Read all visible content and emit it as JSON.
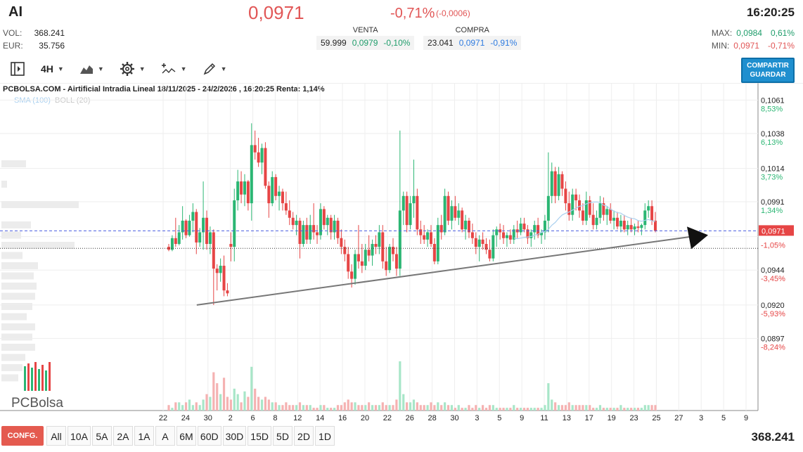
{
  "header": {
    "ticker": "AI",
    "price": "0,0971",
    "change_pct": "-0,71%",
    "change_abs": "(-0,0006)",
    "time": "16:20:25",
    "vol_label": "VOL:",
    "vol_value": "368.241",
    "eur_label": "EUR:",
    "eur_value": "35.756",
    "max_label": "MAX:",
    "max_value": "0,0984",
    "max_pct": "0,61%",
    "min_label": "MIN:",
    "min_value": "0,0971",
    "min_pct": "-0,71%"
  },
  "quotes": {
    "venta_label": "VENTA",
    "venta_qty": "59.999",
    "venta_price": "0,0979",
    "venta_pct": "-0,10%",
    "compra_label": "COMPRA",
    "compra_qty": "23.041",
    "compra_price": "0,0971",
    "compra_pct": "-0,91%"
  },
  "toolbar": {
    "interval": "4H",
    "share_line1": "COMPARTIR",
    "share_line2": "GUARDAR"
  },
  "chart_title": "PCBOLSA.COM - Airtificial Intradia Lineal 18/11/2025 - 24/2/2026 , 16:20:25 Renta: 1,14%",
  "indicators": {
    "sma": "SMA (100)",
    "boll": "BOLL (20)"
  },
  "logo_text": "PCBolsa",
  "bottom": {
    "config_label": "CONFG.",
    "periods": [
      "All",
      "10A",
      "5A",
      "2A",
      "1A",
      "A",
      "6M",
      "60D",
      "30D",
      "15D",
      "5D",
      "2D",
      "1D"
    ],
    "volume": "368.241"
  },
  "colors": {
    "up": "#2bb673",
    "down": "#e64545",
    "accent": "#1f8fcf",
    "config": "#e45a4f"
  },
  "chart_data": {
    "type": "candlestick",
    "title": "PCBOLSA.COM - Airtificial Intradia Lineal 18/11/2025 - 24/2/2026 , 16:20:25 Renta: 1,14%",
    "ylim": [
      0.0888,
      0.1066
    ],
    "current_price": 0.0971,
    "current_price_label": "0,0971",
    "reference_price": 0.0959,
    "y_ticks": [
      {
        "value": 0.1061,
        "label": "0,1061",
        "pct": "8,53%"
      },
      {
        "value": 0.1038,
        "label": "0,1038",
        "pct": "6,13%"
      },
      {
        "value": 0.1014,
        "label": "0,1014",
        "pct": "3,73%"
      },
      {
        "value": 0.0991,
        "label": "0,0991",
        "pct": "1,34%"
      },
      {
        "value": 0.0967,
        "label": "",
        "pct": "-1,05%"
      },
      {
        "value": 0.0944,
        "label": "0,0944",
        "pct": "-3,45%"
      },
      {
        "value": 0.092,
        "label": "0,0920",
        "pct": "-5,93%"
      },
      {
        "value": 0.0897,
        "label": "0,0897",
        "pct": "-8,24%"
      }
    ],
    "x_ticks": [
      "22",
      "24",
      "30",
      "2",
      "6",
      "8",
      "12",
      "14",
      "16",
      "20",
      "22",
      "26",
      "28",
      "30",
      "3",
      "5",
      "9",
      "11",
      "13",
      "17",
      "19",
      "23",
      "25",
      "27",
      "3",
      "5",
      "9"
    ],
    "trendline": {
      "start_index": 2,
      "start_value": 0.092,
      "end_index": 143,
      "end_value": 0.0971
    },
    "candles": [
      {
        "o": 0.096,
        "h": 0.0962,
        "l": 0.0957,
        "c": 0.0958,
        "v": 2
      },
      {
        "o": 0.0958,
        "h": 0.0968,
        "l": 0.0957,
        "c": 0.0966,
        "v": 1
      },
      {
        "o": 0.0966,
        "h": 0.098,
        "l": 0.096,
        "c": 0.0962,
        "v": 3
      },
      {
        "o": 0.0962,
        "h": 0.0975,
        "l": 0.0961,
        "c": 0.097,
        "v": 3
      },
      {
        "o": 0.097,
        "h": 0.0988,
        "l": 0.0965,
        "c": 0.0978,
        "v": 2
      },
      {
        "o": 0.0978,
        "h": 0.0979,
        "l": 0.0966,
        "c": 0.0968,
        "v": 3
      },
      {
        "o": 0.0968,
        "h": 0.0982,
        "l": 0.0967,
        "c": 0.0978,
        "v": 4
      },
      {
        "o": 0.0978,
        "h": 0.099,
        "l": 0.097,
        "c": 0.0984,
        "v": 2
      },
      {
        "o": 0.0984,
        "h": 0.0986,
        "l": 0.0955,
        "c": 0.0963,
        "v": 3
      },
      {
        "o": 0.0963,
        "h": 0.0973,
        "l": 0.096,
        "c": 0.097,
        "v": 2
      },
      {
        "o": 0.097,
        "h": 0.1005,
        "l": 0.0958,
        "c": 0.098,
        "v": 4
      },
      {
        "o": 0.098,
        "h": 0.0985,
        "l": 0.0958,
        "c": 0.0962,
        "v": 6
      },
      {
        "o": 0.0962,
        "h": 0.0974,
        "l": 0.0955,
        "c": 0.097,
        "v": 5
      },
      {
        "o": 0.097,
        "h": 0.0972,
        "l": 0.092,
        "c": 0.0945,
        "v": 14
      },
      {
        "o": 0.0945,
        "h": 0.0948,
        "l": 0.093,
        "c": 0.0942,
        "v": 10
      },
      {
        "o": 0.0942,
        "h": 0.0952,
        "l": 0.0936,
        "c": 0.0947,
        "v": 6
      },
      {
        "o": 0.0947,
        "h": 0.0954,
        "l": 0.0926,
        "c": 0.093,
        "v": 12
      },
      {
        "o": 0.093,
        "h": 0.0935,
        "l": 0.0926,
        "c": 0.0928,
        "v": 5
      },
      {
        "o": 0.0962,
        "h": 0.097,
        "l": 0.095,
        "c": 0.096,
        "v": 4
      },
      {
        "o": 0.096,
        "h": 0.1,
        "l": 0.095,
        "c": 0.0992,
        "v": 8
      },
      {
        "o": 0.0992,
        "h": 0.1013,
        "l": 0.0985,
        "c": 0.1005,
        "v": 6
      },
      {
        "o": 0.1005,
        "h": 0.1012,
        "l": 0.099,
        "c": 0.0996,
        "v": 3
      },
      {
        "o": 0.0996,
        "h": 0.101,
        "l": 0.0988,
        "c": 0.1005,
        "v": 7
      },
      {
        "o": 0.1005,
        "h": 0.1006,
        "l": 0.0985,
        "c": 0.099,
        "v": 5
      },
      {
        "o": 0.099,
        "h": 0.1045,
        "l": 0.0978,
        "c": 0.103,
        "v": 16
      },
      {
        "o": 0.103,
        "h": 0.104,
        "l": 0.102,
        "c": 0.1025,
        "v": 8
      },
      {
        "o": 0.1025,
        "h": 0.1035,
        "l": 0.1015,
        "c": 0.1018,
        "v": 5
      },
      {
        "o": 0.1018,
        "h": 0.1031,
        "l": 0.101,
        "c": 0.1028,
        "v": 4
      },
      {
        "o": 0.1028,
        "h": 0.1032,
        "l": 0.1,
        "c": 0.1002,
        "v": 5
      },
      {
        "o": 0.1002,
        "h": 0.1005,
        "l": 0.098,
        "c": 0.099,
        "v": 4
      },
      {
        "o": 0.099,
        "h": 0.1012,
        "l": 0.0988,
        "c": 0.1008,
        "v": 3
      },
      {
        "o": 0.1008,
        "h": 0.101,
        "l": 0.0992,
        "c": 0.0995,
        "v": 3
      },
      {
        "o": 0.0995,
        "h": 0.1002,
        "l": 0.0985,
        "c": 0.0998,
        "v": 2
      },
      {
        "o": 0.0998,
        "h": 0.1,
        "l": 0.0985,
        "c": 0.099,
        "v": 2
      },
      {
        "o": 0.099,
        "h": 0.0998,
        "l": 0.0982,
        "c": 0.0985,
        "v": 3
      },
      {
        "o": 0.0985,
        "h": 0.0992,
        "l": 0.0975,
        "c": 0.098,
        "v": 2
      },
      {
        "o": 0.098,
        "h": 0.0984,
        "l": 0.0972,
        "c": 0.0975,
        "v": 2
      },
      {
        "o": 0.0975,
        "h": 0.0982,
        "l": 0.0968,
        "c": 0.0978,
        "v": 2
      },
      {
        "o": 0.0978,
        "h": 0.098,
        "l": 0.0952,
        "c": 0.0962,
        "v": 3
      },
      {
        "o": 0.0962,
        "h": 0.0978,
        "l": 0.096,
        "c": 0.0975,
        "v": 2
      },
      {
        "o": 0.0975,
        "h": 0.098,
        "l": 0.0962,
        "c": 0.0965,
        "v": 2
      },
      {
        "o": 0.0965,
        "h": 0.0982,
        "l": 0.0962,
        "c": 0.0975,
        "v": 2
      },
      {
        "o": 0.0975,
        "h": 0.099,
        "l": 0.0965,
        "c": 0.097,
        "v": 1
      },
      {
        "o": 0.097,
        "h": 0.0975,
        "l": 0.0962,
        "c": 0.0968,
        "v": 1
      },
      {
        "o": 0.0968,
        "h": 0.099,
        "l": 0.0965,
        "c": 0.0986,
        "v": 2
      },
      {
        "o": 0.0986,
        "h": 0.0988,
        "l": 0.0972,
        "c": 0.0975,
        "v": 2
      },
      {
        "o": 0.0975,
        "h": 0.0982,
        "l": 0.0968,
        "c": 0.098,
        "v": 1
      },
      {
        "o": 0.098,
        "h": 0.0982,
        "l": 0.0965,
        "c": 0.097,
        "v": 1
      },
      {
        "o": 0.097,
        "h": 0.0982,
        "l": 0.0965,
        "c": 0.0978,
        "v": 1
      },
      {
        "o": 0.0978,
        "h": 0.098,
        "l": 0.0962,
        "c": 0.0966,
        "v": 2
      },
      {
        "o": 0.0966,
        "h": 0.0972,
        "l": 0.0955,
        "c": 0.096,
        "v": 2
      },
      {
        "o": 0.096,
        "h": 0.0965,
        "l": 0.095,
        "c": 0.0955,
        "v": 3
      },
      {
        "o": 0.0955,
        "h": 0.096,
        "l": 0.0938,
        "c": 0.0943,
        "v": 4
      },
      {
        "o": 0.0943,
        "h": 0.0948,
        "l": 0.0932,
        "c": 0.0938,
        "v": 3
      },
      {
        "o": 0.0938,
        "h": 0.0958,
        "l": 0.0934,
        "c": 0.0955,
        "v": 3
      },
      {
        "o": 0.0955,
        "h": 0.0975,
        "l": 0.0945,
        "c": 0.095,
        "v": 2
      },
      {
        "o": 0.095,
        "h": 0.0962,
        "l": 0.0942,
        "c": 0.0947,
        "v": 2
      },
      {
        "o": 0.0947,
        "h": 0.0962,
        "l": 0.0944,
        "c": 0.0958,
        "v": 2
      },
      {
        "o": 0.0958,
        "h": 0.0968,
        "l": 0.095,
        "c": 0.0954,
        "v": 3
      },
      {
        "o": 0.0954,
        "h": 0.0965,
        "l": 0.0947,
        "c": 0.0962,
        "v": 2
      },
      {
        "o": 0.0962,
        "h": 0.0968,
        "l": 0.0955,
        "c": 0.096,
        "v": 2
      },
      {
        "o": 0.096,
        "h": 0.0975,
        "l": 0.0955,
        "c": 0.097,
        "v": 2
      },
      {
        "o": 0.097,
        "h": 0.0975,
        "l": 0.0945,
        "c": 0.095,
        "v": 3
      },
      {
        "o": 0.095,
        "h": 0.096,
        "l": 0.094,
        "c": 0.0944,
        "v": 2
      },
      {
        "o": 0.0944,
        "h": 0.0962,
        "l": 0.0942,
        "c": 0.096,
        "v": 2
      },
      {
        "o": 0.096,
        "h": 0.0966,
        "l": 0.095,
        "c": 0.0955,
        "v": 2
      },
      {
        "o": 0.0955,
        "h": 0.096,
        "l": 0.094,
        "c": 0.0945,
        "v": 4
      },
      {
        "o": 0.0945,
        "h": 0.104,
        "l": 0.094,
        "c": 0.0985,
        "v": 18
      },
      {
        "o": 0.0985,
        "h": 0.0998,
        "l": 0.0975,
        "c": 0.0995,
        "v": 6
      },
      {
        "o": 0.0995,
        "h": 0.0998,
        "l": 0.097,
        "c": 0.0975,
        "v": 3
      },
      {
        "o": 0.0975,
        "h": 0.0995,
        "l": 0.0972,
        "c": 0.099,
        "v": 3
      },
      {
        "o": 0.099,
        "h": 0.102,
        "l": 0.098,
        "c": 0.0995,
        "v": 4
      },
      {
        "o": 0.0995,
        "h": 0.1,
        "l": 0.0968,
        "c": 0.0972,
        "v": 3
      },
      {
        "o": 0.0972,
        "h": 0.0978,
        "l": 0.0962,
        "c": 0.0968,
        "v": 2
      },
      {
        "o": 0.0968,
        "h": 0.0975,
        "l": 0.0962,
        "c": 0.0965,
        "v": 2
      },
      {
        "o": 0.0965,
        "h": 0.0972,
        "l": 0.096,
        "c": 0.097,
        "v": 2
      },
      {
        "o": 0.097,
        "h": 0.0975,
        "l": 0.096,
        "c": 0.0962,
        "v": 3
      },
      {
        "o": 0.0962,
        "h": 0.0966,
        "l": 0.0948,
        "c": 0.095,
        "v": 2
      },
      {
        "o": 0.095,
        "h": 0.098,
        "l": 0.0948,
        "c": 0.0975,
        "v": 3
      },
      {
        "o": 0.0975,
        "h": 0.0982,
        "l": 0.0965,
        "c": 0.097,
        "v": 2
      },
      {
        "o": 0.097,
        "h": 0.1,
        "l": 0.0968,
        "c": 0.0995,
        "v": 3
      },
      {
        "o": 0.0995,
        "h": 0.0998,
        "l": 0.0975,
        "c": 0.0978,
        "v": 2
      },
      {
        "o": 0.0978,
        "h": 0.0992,
        "l": 0.0972,
        "c": 0.0988,
        "v": 2
      },
      {
        "o": 0.0988,
        "h": 0.0995,
        "l": 0.0978,
        "c": 0.098,
        "v": 1
      },
      {
        "o": 0.098,
        "h": 0.099,
        "l": 0.0975,
        "c": 0.0985,
        "v": 2
      },
      {
        "o": 0.0985,
        "h": 0.0987,
        "l": 0.097,
        "c": 0.0972,
        "v": 1
      },
      {
        "o": 0.0972,
        "h": 0.0982,
        "l": 0.0965,
        "c": 0.0978,
        "v": 1
      },
      {
        "o": 0.0978,
        "h": 0.098,
        "l": 0.0966,
        "c": 0.097,
        "v": 2
      },
      {
        "o": 0.097,
        "h": 0.0976,
        "l": 0.0962,
        "c": 0.0966,
        "v": 1
      },
      {
        "o": 0.0966,
        "h": 0.097,
        "l": 0.0955,
        "c": 0.096,
        "v": 2
      },
      {
        "o": 0.096,
        "h": 0.0968,
        "l": 0.095,
        "c": 0.0965,
        "v": 1
      },
      {
        "o": 0.0965,
        "h": 0.097,
        "l": 0.0958,
        "c": 0.0962,
        "v": 2
      },
      {
        "o": 0.0962,
        "h": 0.0966,
        "l": 0.0955,
        "c": 0.0958,
        "v": 1
      },
      {
        "o": 0.0958,
        "h": 0.0965,
        "l": 0.095,
        "c": 0.0952,
        "v": 2
      },
      {
        "o": 0.0952,
        "h": 0.0972,
        "l": 0.095,
        "c": 0.0968,
        "v": 2
      },
      {
        "o": 0.0968,
        "h": 0.0974,
        "l": 0.096,
        "c": 0.0972,
        "v": 1
      },
      {
        "o": 0.0972,
        "h": 0.0976,
        "l": 0.0965,
        "c": 0.097,
        "v": 1
      },
      {
        "o": 0.097,
        "h": 0.0975,
        "l": 0.0962,
        "c": 0.0966,
        "v": 1
      },
      {
        "o": 0.0966,
        "h": 0.097,
        "l": 0.096,
        "c": 0.0968,
        "v": 1
      },
      {
        "o": 0.0968,
        "h": 0.0972,
        "l": 0.0962,
        "c": 0.0965,
        "v": 1
      },
      {
        "o": 0.0965,
        "h": 0.0975,
        "l": 0.0962,
        "c": 0.0972,
        "v": 2
      },
      {
        "o": 0.0972,
        "h": 0.0978,
        "l": 0.0966,
        "c": 0.097,
        "v": 1
      },
      {
        "o": 0.097,
        "h": 0.098,
        "l": 0.0968,
        "c": 0.0976,
        "v": 1
      },
      {
        "o": 0.0976,
        "h": 0.098,
        "l": 0.097,
        "c": 0.0972,
        "v": 1
      },
      {
        "o": 0.0972,
        "h": 0.0975,
        "l": 0.0962,
        "c": 0.0966,
        "v": 1
      },
      {
        "o": 0.0966,
        "h": 0.0972,
        "l": 0.096,
        "c": 0.097,
        "v": 1
      },
      {
        "o": 0.097,
        "h": 0.0978,
        "l": 0.0965,
        "c": 0.0975,
        "v": 1
      },
      {
        "o": 0.0975,
        "h": 0.098,
        "l": 0.0966,
        "c": 0.0968,
        "v": 1
      },
      {
        "o": 0.0968,
        "h": 0.0972,
        "l": 0.0962,
        "c": 0.097,
        "v": 1
      },
      {
        "o": 0.097,
        "h": 0.0982,
        "l": 0.0965,
        "c": 0.0978,
        "v": 2
      },
      {
        "o": 0.0978,
        "h": 0.1025,
        "l": 0.097,
        "c": 0.0995,
        "v": 10
      },
      {
        "o": 0.0995,
        "h": 0.1018,
        "l": 0.099,
        "c": 0.1012,
        "v": 4
      },
      {
        "o": 0.1012,
        "h": 0.1015,
        "l": 0.099,
        "c": 0.0995,
        "v": 3
      },
      {
        "o": 0.0995,
        "h": 0.1015,
        "l": 0.0992,
        "c": 0.101,
        "v": 2
      },
      {
        "o": 0.101,
        "h": 0.1012,
        "l": 0.0995,
        "c": 0.1,
        "v": 2
      },
      {
        "o": 0.1,
        "h": 0.1005,
        "l": 0.0985,
        "c": 0.099,
        "v": 2
      },
      {
        "o": 0.099,
        "h": 0.0998,
        "l": 0.0978,
        "c": 0.0982,
        "v": 3
      },
      {
        "o": 0.0982,
        "h": 0.1,
        "l": 0.0978,
        "c": 0.0996,
        "v": 2
      },
      {
        "o": 0.0996,
        "h": 0.1,
        "l": 0.0985,
        "c": 0.0992,
        "v": 2
      },
      {
        "o": 0.0992,
        "h": 0.0996,
        "l": 0.098,
        "c": 0.0985,
        "v": 2
      },
      {
        "o": 0.0985,
        "h": 0.099,
        "l": 0.0975,
        "c": 0.0978,
        "v": 2
      },
      {
        "o": 0.0978,
        "h": 0.0998,
        "l": 0.0975,
        "c": 0.0992,
        "v": 2
      },
      {
        "o": 0.0992,
        "h": 0.0995,
        "l": 0.098,
        "c": 0.0982,
        "v": 2
      },
      {
        "o": 0.0982,
        "h": 0.099,
        "l": 0.0972,
        "c": 0.0975,
        "v": 1
      },
      {
        "o": 0.0975,
        "h": 0.0985,
        "l": 0.0972,
        "c": 0.098,
        "v": 1
      },
      {
        "o": 0.098,
        "h": 0.0995,
        "l": 0.0976,
        "c": 0.099,
        "v": 2
      },
      {
        "o": 0.099,
        "h": 0.0994,
        "l": 0.0978,
        "c": 0.0982,
        "v": 1
      },
      {
        "o": 0.0982,
        "h": 0.0988,
        "l": 0.0975,
        "c": 0.0986,
        "v": 1
      },
      {
        "o": 0.0986,
        "h": 0.099,
        "l": 0.0976,
        "c": 0.0978,
        "v": 1
      },
      {
        "o": 0.0978,
        "h": 0.0985,
        "l": 0.0972,
        "c": 0.098,
        "v": 1
      },
      {
        "o": 0.098,
        "h": 0.0984,
        "l": 0.0972,
        "c": 0.0974,
        "v": 1
      },
      {
        "o": 0.0974,
        "h": 0.0982,
        "l": 0.097,
        "c": 0.0978,
        "v": 2
      },
      {
        "o": 0.0978,
        "h": 0.0982,
        "l": 0.097,
        "c": 0.0972,
        "v": 1
      },
      {
        "o": 0.0972,
        "h": 0.0978,
        "l": 0.0968,
        "c": 0.0975,
        "v": 1
      },
      {
        "o": 0.0975,
        "h": 0.098,
        "l": 0.097,
        "c": 0.0972,
        "v": 1
      },
      {
        "o": 0.0972,
        "h": 0.0976,
        "l": 0.0968,
        "c": 0.0974,
        "v": 1
      },
      {
        "o": 0.0974,
        "h": 0.0978,
        "l": 0.097,
        "c": 0.0973,
        "v": 1
      },
      {
        "o": 0.0973,
        "h": 0.0976,
        "l": 0.0968,
        "c": 0.0975,
        "v": 1
      },
      {
        "o": 0.0975,
        "h": 0.099,
        "l": 0.0972,
        "c": 0.0985,
        "v": 2
      },
      {
        "o": 0.0985,
        "h": 0.0992,
        "l": 0.098,
        "c": 0.0988,
        "v": 2
      },
      {
        "o": 0.0988,
        "h": 0.0992,
        "l": 0.0975,
        "c": 0.0978,
        "v": 2
      },
      {
        "o": 0.0978,
        "h": 0.0984,
        "l": 0.097,
        "c": 0.0971,
        "v": 2
      }
    ]
  }
}
